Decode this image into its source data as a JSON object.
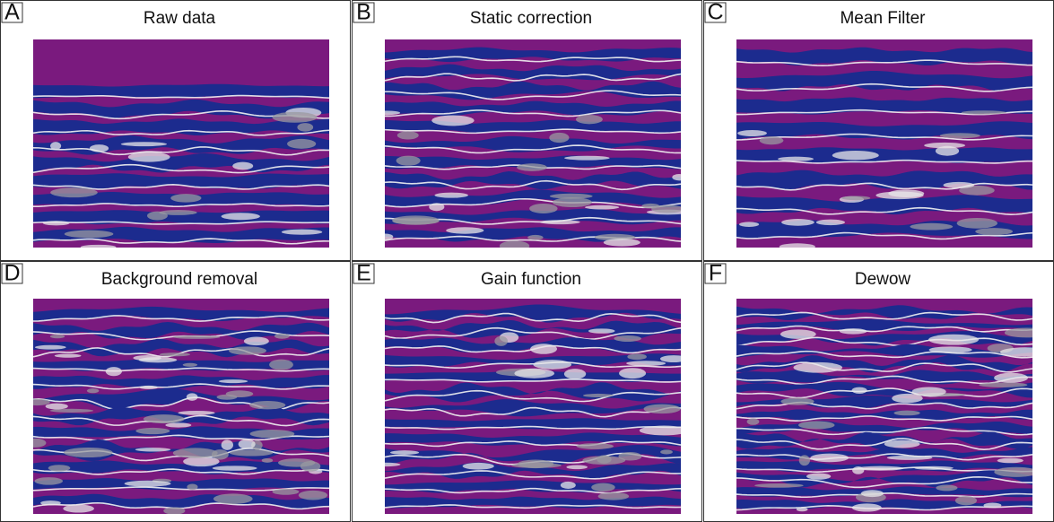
{
  "panels": [
    {
      "letter": "A",
      "title": "Raw data"
    },
    {
      "letter": "B",
      "title": "Static correction"
    },
    {
      "letter": "C",
      "title": "Mean Filter"
    },
    {
      "letter": "D",
      "title": "Background removal"
    },
    {
      "letter": "E",
      "title": "Gain function"
    },
    {
      "letter": "F",
      "title": "Dewow"
    }
  ]
}
